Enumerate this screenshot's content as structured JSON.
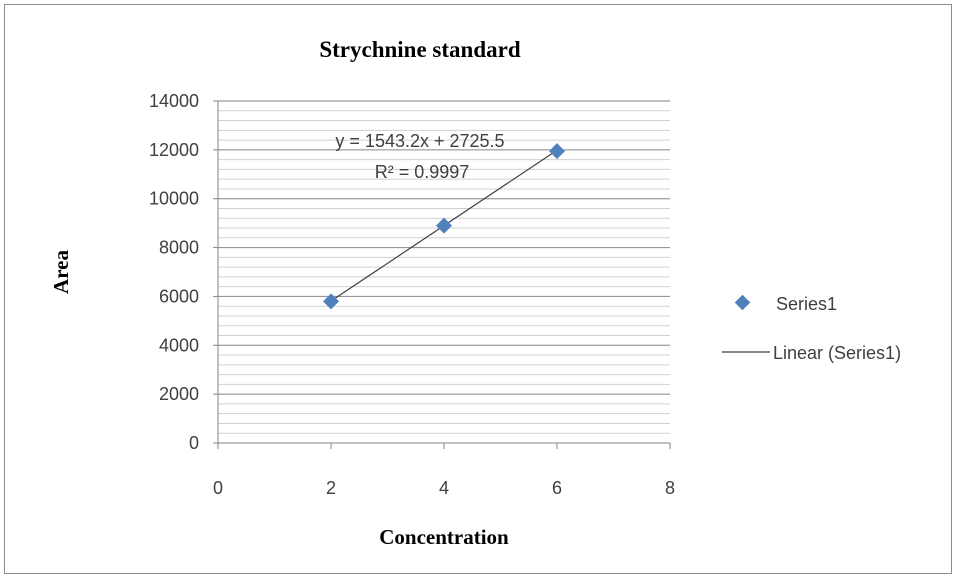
{
  "chart_data": {
    "type": "scatter",
    "title": "Strychnine standard",
    "xlabel": "Concentration",
    "ylabel": "Area",
    "xlim": [
      0,
      8
    ],
    "ylim": [
      0,
      14000
    ],
    "x_ticks": [
      "0",
      "2",
      "4",
      "6",
      "8"
    ],
    "y_ticks": [
      "0",
      "2000",
      "4000",
      "6000",
      "8000",
      "10000",
      "12000",
      "14000"
    ],
    "series": [
      {
        "name": "Series1",
        "marker": "diamond",
        "color": "#4f81bd",
        "x": [
          2,
          4,
          6
        ],
        "y": [
          5800,
          8900,
          11950
        ]
      }
    ],
    "trendline": {
      "name": "Linear (Series1)",
      "type": "linear",
      "slope": 1543.2,
      "intercept": 2725.5,
      "x_range": [
        2,
        6
      ],
      "color": "#404040",
      "equation_text": "y = 1543.2x + 2725.5",
      "r2_text": "R² = 0.9997"
    },
    "grid": {
      "major_step": 2000,
      "minor_step": 400,
      "major_color": "#868686",
      "minor_color": "#d0d0d0"
    },
    "legend": {
      "position": "right",
      "entries": [
        "Series1",
        "Linear (Series1)"
      ]
    }
  }
}
